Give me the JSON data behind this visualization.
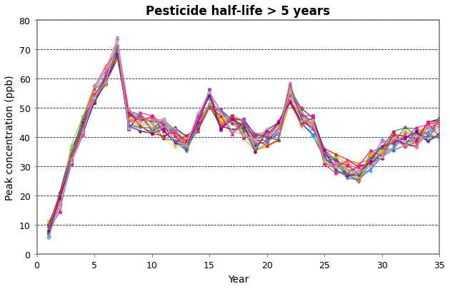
{
  "title": "Pesticide half-life > 5 years",
  "xlabel": "Year",
  "ylabel": "Peak concentration (ppb)",
  "xlim": [
    0,
    35
  ],
  "ylim": [
    0,
    80
  ],
  "xticks": [
    0,
    5,
    10,
    15,
    20,
    25,
    30,
    35
  ],
  "yticks": [
    0,
    10,
    20,
    30,
    40,
    50,
    60,
    70,
    80
  ],
  "base_years": [
    1,
    2,
    3,
    4,
    5,
    6,
    7,
    8,
    9,
    10,
    11,
    12,
    13,
    14,
    15,
    16,
    17,
    18,
    19,
    20,
    21,
    22,
    23,
    24,
    25,
    26,
    27,
    28,
    29,
    30,
    31,
    32,
    33,
    34,
    35
  ],
  "base_values": [
    8,
    18,
    34,
    44,
    55,
    61,
    70,
    46,
    45,
    44,
    43,
    40,
    38,
    45,
    53,
    46,
    44,
    43,
    38,
    40,
    42,
    55,
    47,
    44,
    34,
    31,
    29,
    28,
    32,
    36,
    39,
    40,
    40,
    42,
    43
  ],
  "num_series": 20,
  "colors": [
    "#000080",
    "#0000CD",
    "#1E90FF",
    "#00BFFF",
    "#00CED1",
    "#008B8B",
    "#228B22",
    "#9ACD32",
    "#FFD700",
    "#FFA500",
    "#FF8C00",
    "#FF4500",
    "#FF0000",
    "#C71585",
    "#FF1493",
    "#FF69B4",
    "#BA55D3",
    "#8B008B",
    "#696969",
    "#B8B8B8"
  ],
  "markers": [
    "o",
    "s",
    "^",
    "D",
    "v",
    "P",
    "*",
    "X",
    "h",
    "p",
    "+",
    "x",
    "^",
    "s",
    "o",
    "D",
    "v",
    "P",
    "h",
    "p"
  ],
  "background_color": "#FFFFFF",
  "spine_color": "#808080",
  "grid_color": "#000000",
  "title_fontsize": 12,
  "axis_label_fontsize": 10,
  "tick_labelsize": 9
}
